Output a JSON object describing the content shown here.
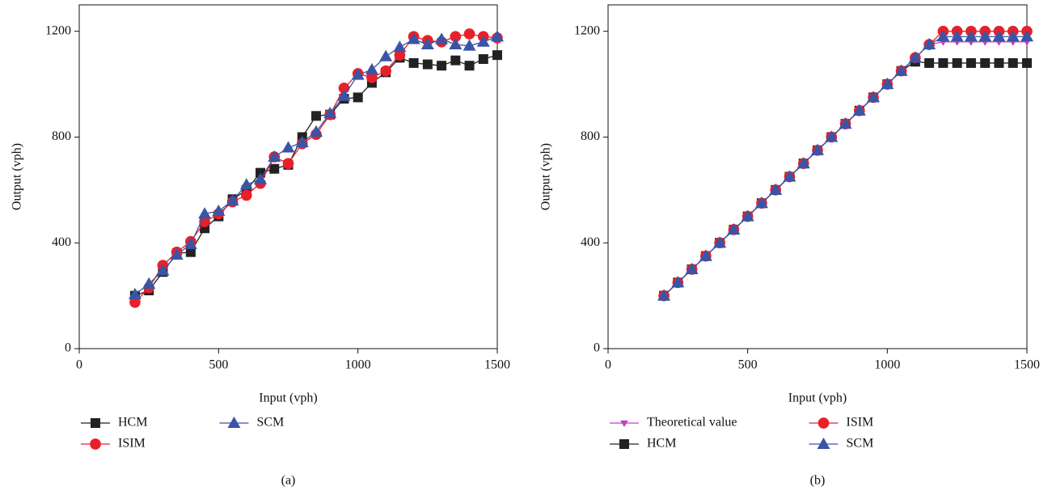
{
  "chart_data": [
    {
      "type": "line",
      "caption": "(a)",
      "x_label": "Input (vph)",
      "y_label": "Output (vph)",
      "xlim": [
        0,
        1500
      ],
      "ylim": [
        0,
        1300
      ],
      "xticks": [
        0,
        500,
        1000,
        1500
      ],
      "yticks": [
        0,
        400,
        800,
        1200
      ],
      "x": [
        200,
        250,
        300,
        350,
        400,
        450,
        500,
        550,
        600,
        650,
        700,
        750,
        800,
        850,
        900,
        950,
        1000,
        1050,
        1100,
        1150,
        1200,
        1250,
        1300,
        1350,
        1400,
        1450,
        1500
      ],
      "series": [
        {
          "name": "HCM",
          "color": "#222222",
          "marker": "square",
          "values": [
            200,
            220,
            290,
            360,
            365,
            455,
            500,
            565,
            600,
            665,
            680,
            695,
            800,
            880,
            885,
            945,
            950,
            1005,
            1045,
            1100,
            1080,
            1075,
            1070,
            1090,
            1070,
            1095,
            1110
          ]
        },
        {
          "name": "ISIM",
          "color": "#e8202a",
          "marker": "circle",
          "values": [
            175,
            230,
            315,
            365,
            405,
            480,
            510,
            555,
            580,
            625,
            725,
            700,
            775,
            810,
            885,
            985,
            1040,
            1025,
            1050,
            1110,
            1180,
            1165,
            1160,
            1180,
            1190,
            1180,
            1175
          ]
        },
        {
          "name": "SCM",
          "color": "#3a55a5",
          "marker": "triangle",
          "values": [
            205,
            245,
            295,
            355,
            395,
            510,
            520,
            560,
            620,
            640,
            725,
            760,
            780,
            820,
            890,
            955,
            1035,
            1055,
            1105,
            1140,
            1170,
            1150,
            1170,
            1150,
            1145,
            1160,
            1180
          ]
        }
      ]
    },
    {
      "type": "line",
      "caption": "(b)",
      "x_label": "Input (vph)",
      "y_label": "Output (vph)",
      "xlim": [
        0,
        1500
      ],
      "ylim": [
        0,
        1300
      ],
      "xticks": [
        0,
        500,
        1000,
        1500
      ],
      "yticks": [
        0,
        400,
        800,
        1200
      ],
      "x": [
        200,
        250,
        300,
        350,
        400,
        450,
        500,
        550,
        600,
        650,
        700,
        750,
        800,
        850,
        900,
        950,
        1000,
        1050,
        1100,
        1150,
        1200,
        1250,
        1300,
        1350,
        1400,
        1450,
        1500
      ],
      "series": [
        {
          "name": "Theoretical value",
          "color": "#c040c0",
          "marker": "down-triangle",
          "values": [
            200,
            250,
            300,
            350,
            400,
            450,
            500,
            550,
            600,
            650,
            700,
            750,
            800,
            850,
            900,
            950,
            1000,
            1050,
            1100,
            1150,
            1160,
            1160,
            1160,
            1160,
            1160,
            1160,
            1160
          ]
        },
        {
          "name": "HCM",
          "color": "#222222",
          "marker": "square",
          "values": [
            200,
            250,
            300,
            350,
            400,
            450,
            500,
            550,
            600,
            650,
            700,
            750,
            800,
            850,
            900,
            950,
            1000,
            1050,
            1085,
            1080,
            1080,
            1080,
            1080,
            1080,
            1080,
            1080,
            1080
          ]
        },
        {
          "name": "ISIM",
          "color": "#e8202a",
          "marker": "circle",
          "values": [
            200,
            250,
            300,
            350,
            400,
            450,
            500,
            550,
            600,
            650,
            700,
            750,
            800,
            850,
            900,
            950,
            1000,
            1050,
            1100,
            1150,
            1200,
            1200,
            1200,
            1200,
            1200,
            1200,
            1200
          ]
        },
        {
          "name": "SCM",
          "color": "#3a55a5",
          "marker": "triangle",
          "values": [
            200,
            250,
            300,
            350,
            400,
            450,
            500,
            550,
            600,
            650,
            700,
            750,
            800,
            850,
            900,
            950,
            1000,
            1050,
            1100,
            1150,
            1180,
            1180,
            1180,
            1180,
            1180,
            1180,
            1180
          ]
        }
      ]
    }
  ]
}
